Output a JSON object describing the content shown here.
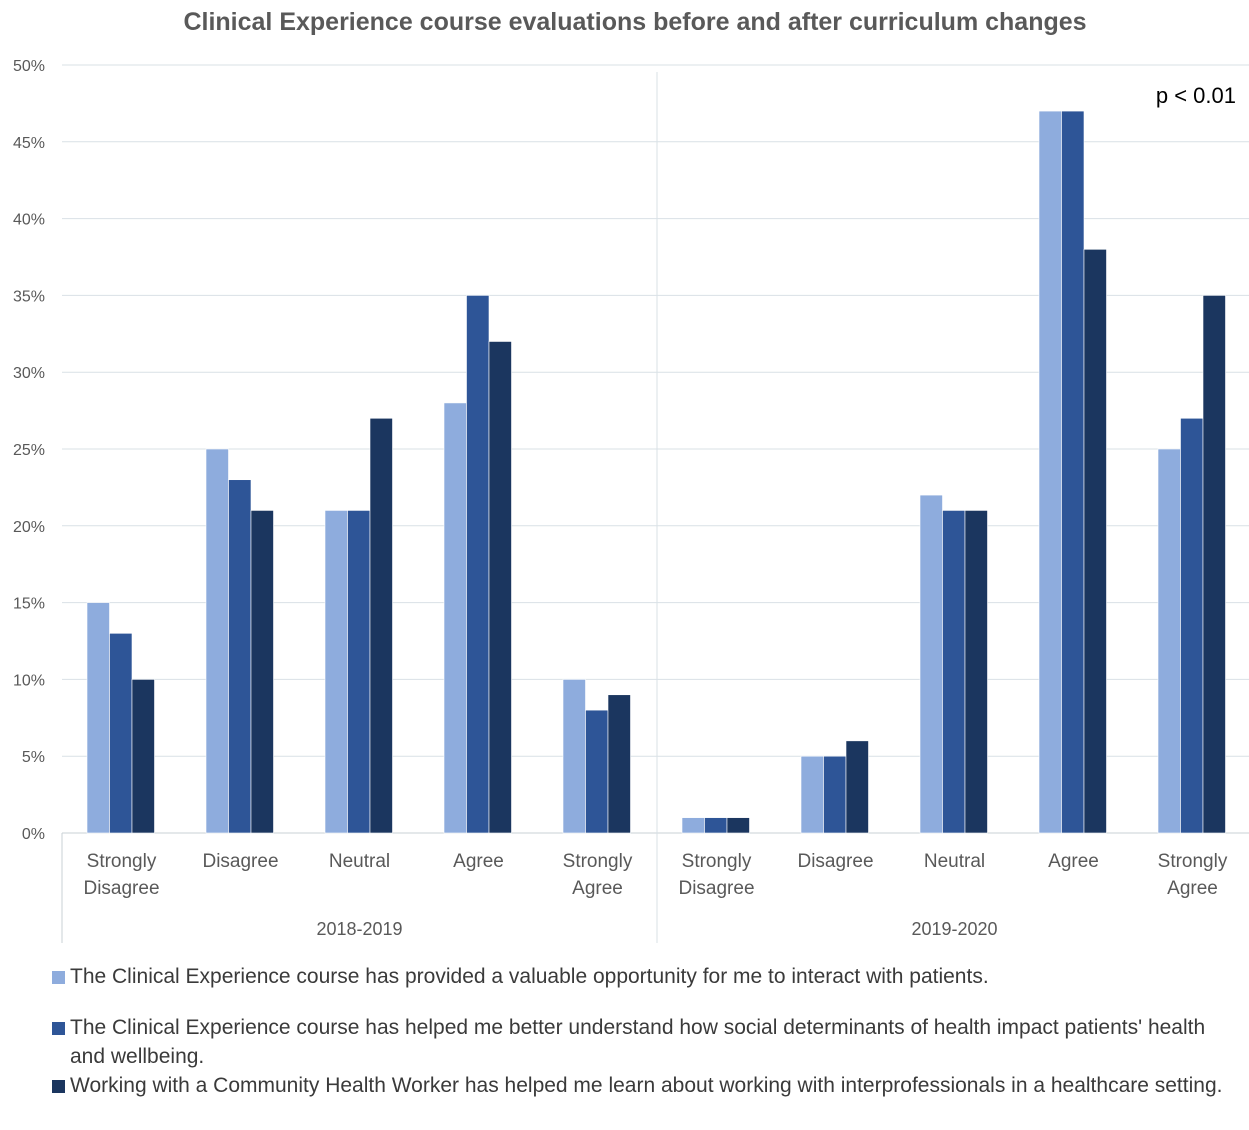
{
  "chart_data": {
    "type": "bar",
    "title": "Clinical Experience course evaluations before and after curriculum changes",
    "annotation": "p < 0.01",
    "ylim": [
      0,
      50
    ],
    "y_ticks": [
      0,
      5,
      10,
      15,
      20,
      25,
      30,
      35,
      40,
      45,
      50
    ],
    "y_tick_labels": [
      "0%",
      "5%",
      "10%",
      "15%",
      "20%",
      "25%",
      "30%",
      "35%",
      "40%",
      "45%",
      "50%"
    ],
    "groups": [
      {
        "label": "2018-2019",
        "categories": [
          [
            "Strongly",
            "Disagree"
          ],
          [
            "Disagree"
          ],
          [
            "Neutral"
          ],
          [
            "Agree"
          ],
          [
            "Strongly",
            "Agree"
          ]
        ]
      },
      {
        "label": "2019-2020",
        "categories": [
          [
            "Strongly",
            "Disagree"
          ],
          [
            "Disagree"
          ],
          [
            "Neutral"
          ],
          [
            "Agree"
          ],
          [
            "Strongly",
            "Agree"
          ]
        ]
      }
    ],
    "series": [
      {
        "name": "The Clinical Experience course has provided a valuable opportunity for me to interact with patients.",
        "color": "#8eacdd",
        "values": [
          15,
          25,
          21,
          28,
          10,
          1,
          5,
          22,
          47,
          25
        ]
      },
      {
        "name": "The Clinical Experience course has helped me better understand how social determinants of health impact patients' health and wellbeing.",
        "color": "#2e5597",
        "values": [
          13,
          23,
          21,
          35,
          8,
          1,
          5,
          21,
          47,
          27
        ]
      },
      {
        "name": "Working with a Community Health Worker has helped me learn about working with interprofessionals in a healthcare setting.",
        "color": "#1b365f",
        "values": [
          10,
          21,
          27,
          32,
          9,
          1,
          6,
          21,
          38,
          35
        ]
      }
    ],
    "grid": true,
    "legend_position": "bottom"
  }
}
